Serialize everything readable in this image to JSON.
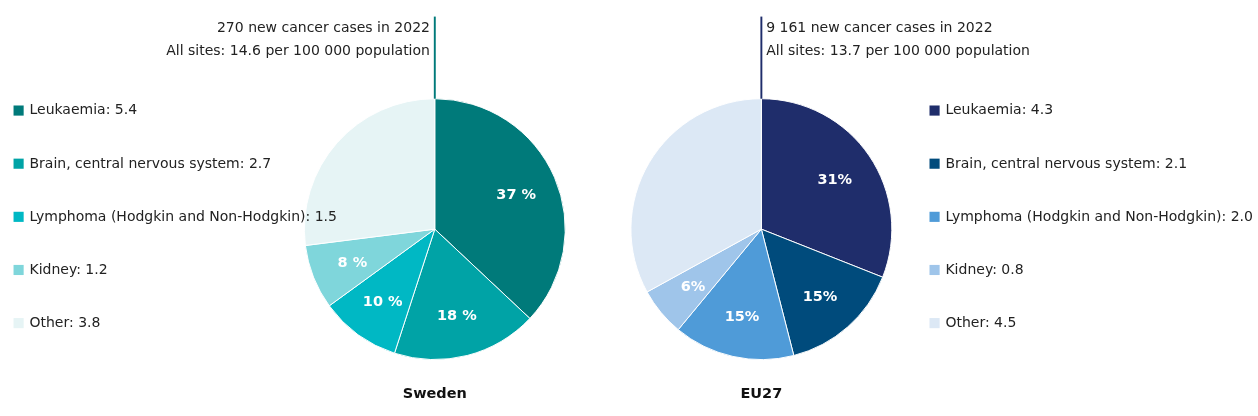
{
  "chart_data": [
    {
      "type": "pie",
      "title": "Sweden",
      "annotations": [
        "270 new cancer cases in 2022",
        "All sites:  14.6  per 100 000 population"
      ],
      "legend": "left",
      "categories": [
        "Leukaemia:  5.4",
        "Brain, central nervous system:  2.7",
        "Lymphoma (Hodgkin and Non-Hodgkin):  1.5",
        "Kidney:  1.2",
        "Other:  3.8"
      ],
      "values": [
        37,
        18,
        10,
        8,
        27
      ],
      "value_labels": [
        "37 %",
        "18 %",
        "10 %",
        "8 %",
        null
      ],
      "colors": [
        "#007a7a",
        "#00a3a6",
        "#00b8c4",
        "#7fd6db",
        "#e6f4f5"
      ]
    },
    {
      "type": "pie",
      "title": "EU27",
      "annotations": [
        "9 161 new cancer cases in 2022",
        "All sites:  13.7  per 100 000 population"
      ],
      "legend": "right",
      "categories": [
        "Leukaemia:  4.3",
        "Brain, central nervous system:  2.1",
        "Lymphoma (Hodgkin and Non-Hodgkin):  2.0",
        "Kidney:  0.8",
        "Other:  4.5"
      ],
      "values": [
        31,
        15,
        15,
        6,
        33
      ],
      "value_labels": [
        "31%",
        "15%",
        "15%",
        "6%",
        null
      ],
      "colors": [
        "#1f2d6b",
        "#004b7c",
        "#4f9bd8",
        "#9fc5ea",
        "#dce8f5"
      ]
    }
  ]
}
